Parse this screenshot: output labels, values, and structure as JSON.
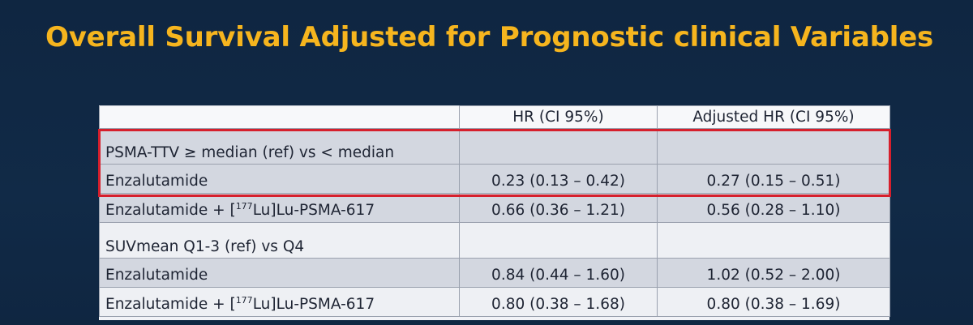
{
  "slide": {
    "title": "Overall Survival Adjusted for Prognostic clinical Variables"
  },
  "table": {
    "columns": [
      "",
      "HR (CI 95%)",
      "Adjusted HR (CI 95%)"
    ],
    "rows": [
      {
        "label": "PSMA-TTV ≥ median (ref) vs < median",
        "hr": "",
        "adj_hr": ""
      },
      {
        "label": "Enzalutamide",
        "hr": "0.23 (0.13 – 0.42)",
        "adj_hr": "0.27 (0.15 – 0.51)"
      },
      {
        "label_pre": "Enzalutamide + [",
        "label_sup": "177",
        "label_post": "Lu]Lu-PSMA-617",
        "hr": "0.66 (0.36 – 1.21)",
        "adj_hr": "0.56 (0.28 – 1.10)"
      },
      {
        "label": "SUVmean Q1-3 (ref) vs Q4",
        "hr": "",
        "adj_hr": ""
      },
      {
        "label": "Enzalutamide",
        "hr": "0.84 (0.44 – 1.60)",
        "adj_hr": "1.02 (0.52 – 2.00)"
      },
      {
        "label_pre": "Enzalutamide + [",
        "label_sup": "177",
        "label_post": "Lu]Lu-PSMA-617",
        "hr": "0.80 (0.38 – 1.68)",
        "adj_hr": "0.80 (0.38 – 1.69)"
      }
    ]
  },
  "highlight": {
    "color": "#d61f2c"
  }
}
